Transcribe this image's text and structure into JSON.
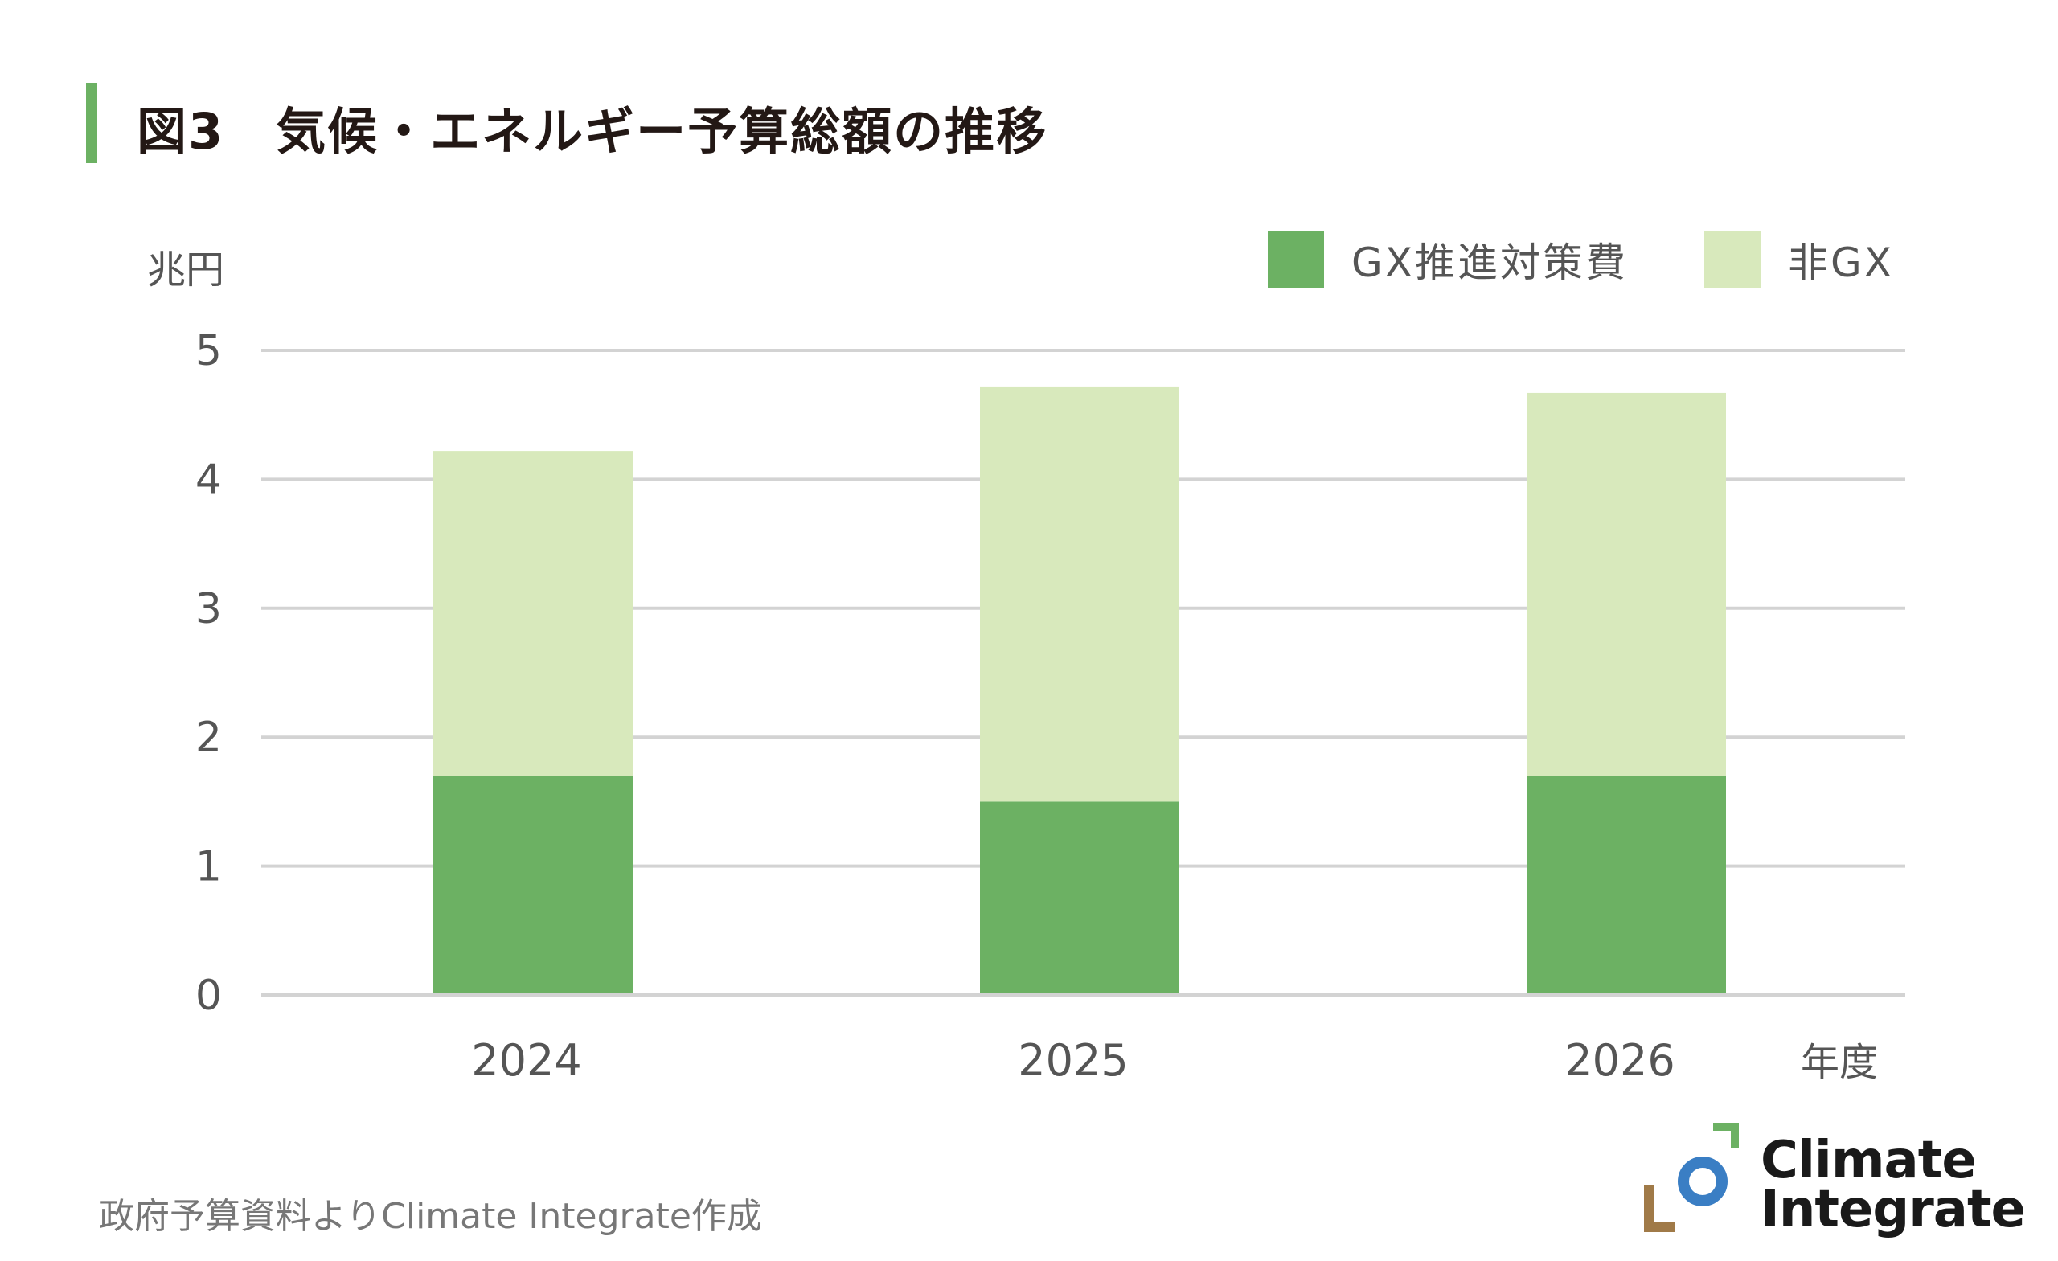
{
  "title": "図3　気候・エネルギー予算総額の推移",
  "unit_label": "兆円",
  "x_axis_title": "年度",
  "source": "政府予算資料よりClimate Integrate作成",
  "logo": {
    "line1": "Climate",
    "line2": "Integrate"
  },
  "colors": {
    "gx": "#6cb163",
    "non_gx": "#d8e9bc",
    "accent": "#6cb163",
    "grid": "#d3d3d3",
    "logo_green": "#6cb163",
    "logo_blue": "#3a7ec4",
    "logo_brown": "#a07a48"
  },
  "chart_data": {
    "type": "bar",
    "stacked": true,
    "categories": [
      "2024",
      "2025",
      "2026"
    ],
    "series": [
      {
        "name": "GX推進対策費",
        "values": [
          1.7,
          1.5,
          1.7
        ]
      },
      {
        "name": "非GX",
        "values": [
          2.52,
          3.22,
          2.97
        ]
      }
    ],
    "ylabel": "兆円",
    "xlabel": "年度",
    "ylim": [
      0,
      5
    ],
    "yticks": [
      "0",
      "1",
      "2",
      "3",
      "4",
      "5"
    ],
    "grid": true,
    "legend": "top-right"
  }
}
